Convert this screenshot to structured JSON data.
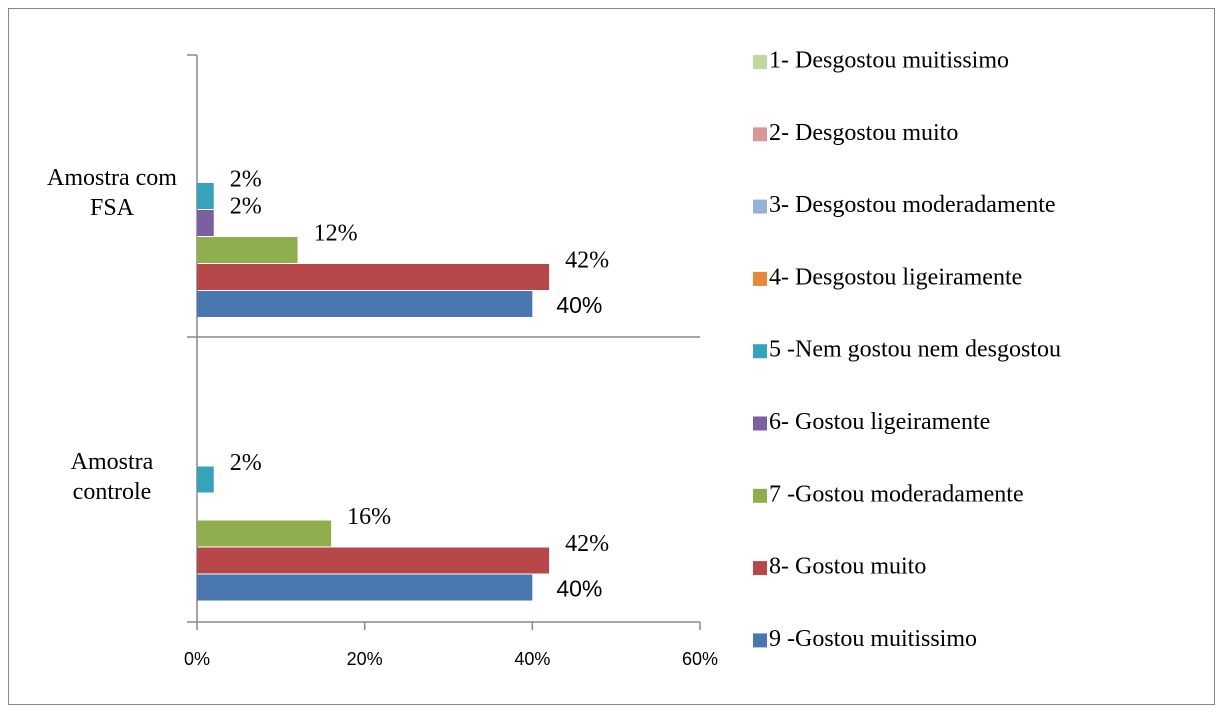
{
  "chart_data": {
    "type": "bar",
    "orientation": "horizontal",
    "categories": [
      "Amostra com FSA",
      "Amostra controle"
    ],
    "series": [
      {
        "name": "1- Desgostou muitissimo",
        "color": "#c3d69b",
        "values": [
          0,
          0
        ],
        "value_labels": [
          null,
          null
        ]
      },
      {
        "name": "2- Desgostou muito",
        "color": "#d99694",
        "values": [
          0,
          0
        ],
        "value_labels": [
          null,
          null
        ]
      },
      {
        "name": "3- Desgostou moderadamente",
        "color": "#95b3d7",
        "values": [
          0,
          0
        ],
        "value_labels": [
          null,
          null
        ]
      },
      {
        "name": "4- Desgostou ligeiramente",
        "color": "#e8883a",
        "values": [
          0,
          0
        ],
        "value_labels": [
          null,
          null
        ]
      },
      {
        "name": "5 -Nem gostou nem desgostou",
        "color": "#35a3bb",
        "values": [
          2,
          2
        ],
        "value_labels": [
          "2%",
          "2%"
        ]
      },
      {
        "name": "6- Gostou ligeiramente",
        "color": "#7b5f9e",
        "values": [
          2,
          0
        ],
        "value_labels": [
          "2%",
          null
        ]
      },
      {
        "name": "7 -Gostou moderadamente",
        "color": "#8faf4f",
        "values": [
          12,
          16
        ],
        "value_labels": [
          "12%",
          "16%"
        ]
      },
      {
        "name": "8- Gostou muito",
        "color": "#b8474a",
        "values": [
          42,
          42
        ],
        "value_labels": [
          "42%",
          "42%"
        ]
      },
      {
        "name": "9 -Gostou muitissimo",
        "color": "#4a77b0",
        "values": [
          40,
          40
        ],
        "value_labels": [
          "40%",
          "40%"
        ]
      }
    ],
    "xlim": [
      0,
      60
    ],
    "xticks": [
      {
        "value": 0,
        "label": "0%"
      },
      {
        "value": 20,
        "label": "20%"
      },
      {
        "value": 40,
        "label": "40%"
      },
      {
        "value": 60,
        "label": "60%"
      }
    ],
    "legend": "right"
  }
}
